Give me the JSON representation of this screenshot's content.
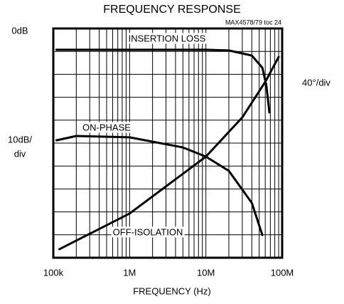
{
  "chart_data": {
    "type": "line",
    "title": "FREQUENCY RESPONSE",
    "note": "MAX4578/79 toc 24",
    "xlabel": "FREQUENCY (Hz)",
    "y_div_label": [
      "10dB/",
      "div"
    ],
    "y2_div_label": "40°/div",
    "log_x": true,
    "xlim": [
      100000,
      100000000
    ],
    "xticks": [
      {
        "value": 100000,
        "label": "100k"
      },
      {
        "value": 1000000,
        "label": "1M"
      },
      {
        "value": 10000000,
        "label": "10M"
      },
      {
        "value": 100000000,
        "label": "100M"
      }
    ],
    "xgrid": [
      200000,
      300000,
      400000,
      500000,
      600000,
      700000,
      800000,
      900000,
      2000000,
      3000000,
      4000000,
      5000000,
      6000000,
      7000000,
      8000000,
      9000000,
      20000000,
      30000000,
      40000000,
      50000000,
      60000000,
      70000000,
      80000000,
      90000000
    ],
    "ylim": [
      -100,
      0
    ],
    "yticks": [
      {
        "value": 0,
        "label": "0dB"
      }
    ],
    "ygrid": [
      -10,
      -20,
      -30,
      -40,
      -50,
      -60,
      -70,
      -80,
      -90,
      -100
    ],
    "series": [
      {
        "name": "INSERTION LOSS",
        "color": "#000000",
        "x": [
          110000,
          1000000,
          10000000,
          20000000,
          40000000,
          55000000,
          62000000,
          66000000,
          68000000
        ],
        "values": [
          -9.3,
          -9.3,
          -9.3,
          -9.6,
          -11.8,
          -17.1,
          -24.8,
          -32.6,
          -36.6
        ]
      },
      {
        "name": "ON-PHASE",
        "color": "#000000",
        "x": [
          110000,
          200000,
          1000000,
          5000000,
          10000000,
          20000000,
          40000000,
          55000000
        ],
        "values": [
          -48.8,
          -46.9,
          -47.5,
          -51.9,
          -55.9,
          -62.1,
          -76.1,
          -90.1
        ]
      },
      {
        "name": "OFF-ISOLATION",
        "color": "#000000",
        "x": [
          120000,
          1000000,
          10000000,
          30000000,
          60000000,
          90000000
        ],
        "values": [
          -96.3,
          -80.7,
          -55.9,
          -38.8,
          -23.3,
          -12.4
        ]
      }
    ]
  }
}
